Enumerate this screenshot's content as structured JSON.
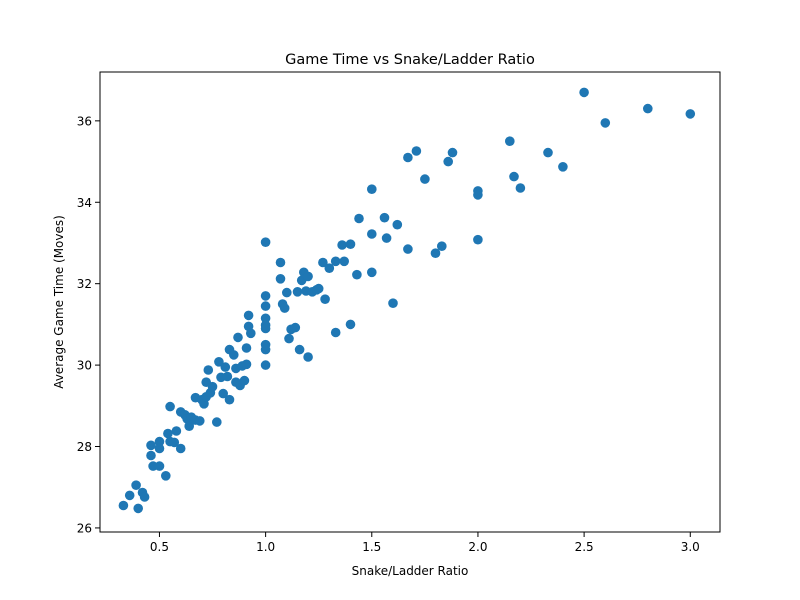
{
  "chart_data": {
    "type": "scatter",
    "title": "Game Time vs Snake/Ladder Ratio",
    "xlabel": "Snake/Ladder Ratio",
    "ylabel": "Average Game Time (Moves)",
    "xlim": [
      0.22,
      3.14
    ],
    "ylim": [
      25.9,
      37.2
    ],
    "xticks": [
      0.5,
      1.0,
      1.5,
      2.0,
      2.5,
      3.0
    ],
    "xtick_labels": [
      "0.5",
      "1.0",
      "1.5",
      "2.0",
      "2.5",
      "3.0"
    ],
    "yticks": [
      26,
      28,
      30,
      32,
      34,
      36
    ],
    "ytick_labels": [
      "26",
      "28",
      "30",
      "32",
      "34",
      "36"
    ],
    "grid": false,
    "marker_color": "#1f77b4",
    "points": [
      {
        "x": 0.33,
        "y": 26.55
      },
      {
        "x": 0.36,
        "y": 26.8
      },
      {
        "x": 0.39,
        "y": 27.05
      },
      {
        "x": 0.4,
        "y": 26.48
      },
      {
        "x": 0.42,
        "y": 26.87
      },
      {
        "x": 0.43,
        "y": 26.76
      },
      {
        "x": 0.46,
        "y": 28.03
      },
      {
        "x": 0.46,
        "y": 27.78
      },
      {
        "x": 0.47,
        "y": 27.52
      },
      {
        "x": 0.5,
        "y": 28.12
      },
      {
        "x": 0.5,
        "y": 27.95
      },
      {
        "x": 0.5,
        "y": 27.52
      },
      {
        "x": 0.53,
        "y": 27.28
      },
      {
        "x": 0.54,
        "y": 28.32
      },
      {
        "x": 0.55,
        "y": 28.12
      },
      {
        "x": 0.55,
        "y": 28.98
      },
      {
        "x": 0.57,
        "y": 28.1
      },
      {
        "x": 0.58,
        "y": 28.38
      },
      {
        "x": 0.6,
        "y": 27.95
      },
      {
        "x": 0.6,
        "y": 28.85
      },
      {
        "x": 0.62,
        "y": 28.78
      },
      {
        "x": 0.63,
        "y": 28.68
      },
      {
        "x": 0.64,
        "y": 28.5
      },
      {
        "x": 0.65,
        "y": 28.72
      },
      {
        "x": 0.67,
        "y": 29.2
      },
      {
        "x": 0.67,
        "y": 28.65
      },
      {
        "x": 0.69,
        "y": 28.63
      },
      {
        "x": 0.7,
        "y": 29.15
      },
      {
        "x": 0.71,
        "y": 29.05
      },
      {
        "x": 0.72,
        "y": 29.58
      },
      {
        "x": 0.72,
        "y": 29.22
      },
      {
        "x": 0.73,
        "y": 29.88
      },
      {
        "x": 0.74,
        "y": 29.32
      },
      {
        "x": 0.75,
        "y": 29.47
      },
      {
        "x": 0.77,
        "y": 28.6
      },
      {
        "x": 0.78,
        "y": 30.08
      },
      {
        "x": 0.79,
        "y": 29.7
      },
      {
        "x": 0.8,
        "y": 29.3
      },
      {
        "x": 0.81,
        "y": 29.95
      },
      {
        "x": 0.82,
        "y": 29.72
      },
      {
        "x": 0.83,
        "y": 30.38
      },
      {
        "x": 0.83,
        "y": 29.15
      },
      {
        "x": 0.85,
        "y": 30.25
      },
      {
        "x": 0.86,
        "y": 29.92
      },
      {
        "x": 0.86,
        "y": 29.58
      },
      {
        "x": 0.87,
        "y": 30.68
      },
      {
        "x": 0.88,
        "y": 29.5
      },
      {
        "x": 0.89,
        "y": 29.98
      },
      {
        "x": 0.9,
        "y": 29.62
      },
      {
        "x": 0.91,
        "y": 30.42
      },
      {
        "x": 0.91,
        "y": 30.02
      },
      {
        "x": 0.92,
        "y": 31.22
      },
      {
        "x": 0.92,
        "y": 30.95
      },
      {
        "x": 0.93,
        "y": 30.78
      },
      {
        "x": 1.0,
        "y": 33.02
      },
      {
        "x": 1.0,
        "y": 31.7
      },
      {
        "x": 1.0,
        "y": 31.45
      },
      {
        "x": 1.0,
        "y": 31.15
      },
      {
        "x": 1.0,
        "y": 30.98
      },
      {
        "x": 1.0,
        "y": 30.9
      },
      {
        "x": 1.0,
        "y": 30.5
      },
      {
        "x": 1.0,
        "y": 30.38
      },
      {
        "x": 1.0,
        "y": 30.0
      },
      {
        "x": 1.07,
        "y": 32.52
      },
      {
        "x": 1.07,
        "y": 32.12
      },
      {
        "x": 1.08,
        "y": 31.5
      },
      {
        "x": 1.09,
        "y": 31.4
      },
      {
        "x": 1.1,
        "y": 31.78
      },
      {
        "x": 1.11,
        "y": 30.65
      },
      {
        "x": 1.12,
        "y": 30.88
      },
      {
        "x": 1.14,
        "y": 30.92
      },
      {
        "x": 1.15,
        "y": 31.8
      },
      {
        "x": 1.16,
        "y": 30.38
      },
      {
        "x": 1.17,
        "y": 32.08
      },
      {
        "x": 1.18,
        "y": 32.28
      },
      {
        "x": 1.19,
        "y": 31.82
      },
      {
        "x": 1.2,
        "y": 30.2
      },
      {
        "x": 1.2,
        "y": 32.18
      },
      {
        "x": 1.22,
        "y": 31.8
      },
      {
        "x": 1.24,
        "y": 31.85
      },
      {
        "x": 1.25,
        "y": 31.88
      },
      {
        "x": 1.27,
        "y": 32.52
      },
      {
        "x": 1.28,
        "y": 31.62
      },
      {
        "x": 1.3,
        "y": 32.38
      },
      {
        "x": 1.33,
        "y": 32.55
      },
      {
        "x": 1.33,
        "y": 30.8
      },
      {
        "x": 1.36,
        "y": 32.95
      },
      {
        "x": 1.37,
        "y": 32.55
      },
      {
        "x": 1.4,
        "y": 32.97
      },
      {
        "x": 1.4,
        "y": 31.0
      },
      {
        "x": 1.43,
        "y": 32.22
      },
      {
        "x": 1.44,
        "y": 33.6
      },
      {
        "x": 1.5,
        "y": 34.32
      },
      {
        "x": 1.5,
        "y": 33.22
      },
      {
        "x": 1.5,
        "y": 32.28
      },
      {
        "x": 1.56,
        "y": 33.62
      },
      {
        "x": 1.57,
        "y": 33.12
      },
      {
        "x": 1.6,
        "y": 31.52
      },
      {
        "x": 1.62,
        "y": 33.45
      },
      {
        "x": 1.67,
        "y": 35.1
      },
      {
        "x": 1.67,
        "y": 32.85
      },
      {
        "x": 1.71,
        "y": 35.26
      },
      {
        "x": 1.75,
        "y": 34.57
      },
      {
        "x": 1.8,
        "y": 32.75
      },
      {
        "x": 1.83,
        "y": 32.92
      },
      {
        "x": 1.86,
        "y": 35.0
      },
      {
        "x": 1.88,
        "y": 35.22
      },
      {
        "x": 2.0,
        "y": 34.28
      },
      {
        "x": 2.0,
        "y": 34.18
      },
      {
        "x": 2.0,
        "y": 33.08
      },
      {
        "x": 2.15,
        "y": 35.5
      },
      {
        "x": 2.17,
        "y": 34.63
      },
      {
        "x": 2.2,
        "y": 34.35
      },
      {
        "x": 2.33,
        "y": 35.22
      },
      {
        "x": 2.4,
        "y": 34.87
      },
      {
        "x": 2.5,
        "y": 36.7
      },
      {
        "x": 2.6,
        "y": 35.95
      },
      {
        "x": 2.8,
        "y": 36.3
      },
      {
        "x": 3.0,
        "y": 36.17
      }
    ]
  }
}
